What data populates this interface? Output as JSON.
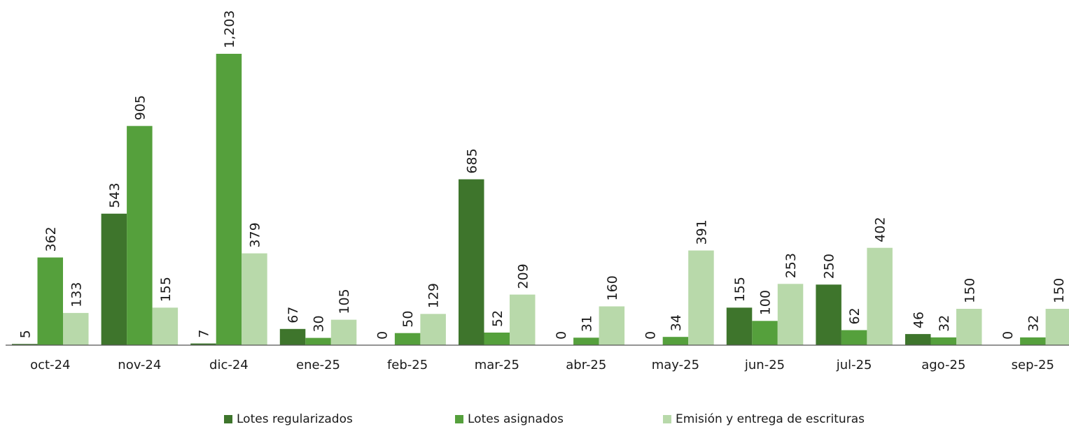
{
  "chart_data": {
    "type": "bar",
    "categories": [
      "oct-24",
      "nov-24",
      "dic-24",
      "ene-25",
      "feb-25",
      "mar-25",
      "abr-25",
      "may-25",
      "jun-25",
      "jul-25",
      "ago-25",
      "sep-25"
    ],
    "series": [
      {
        "name": "Lotes regularizados",
        "color": "#3e752c",
        "values": [
          5,
          543,
          7,
          67,
          0,
          685,
          0,
          0,
          155,
          250,
          46,
          0
        ]
      },
      {
        "name": "Lotes asignados",
        "color": "#55a03c",
        "values": [
          362,
          905,
          1203,
          30,
          50,
          52,
          31,
          34,
          100,
          62,
          32,
          32
        ]
      },
      {
        "name": "Emisión y entrega de escrituras",
        "color": "#b8d9aa",
        "values": [
          133,
          155,
          379,
          105,
          129,
          209,
          160,
          391,
          253,
          402,
          150,
          150
        ]
      }
    ],
    "data_labels": [
      [
        "5",
        "543",
        "7",
        "67",
        "0",
        "685",
        "0",
        "0",
        "155",
        "250",
        "46",
        "0"
      ],
      [
        "362",
        "905",
        "1,203",
        "30",
        "50",
        "52",
        "31",
        "34",
        "100",
        "62",
        "32",
        "32"
      ],
      [
        "133",
        "155",
        "379",
        "105",
        "129",
        "209",
        "160",
        "391",
        "253",
        "402",
        "150",
        "150"
      ]
    ],
    "ylim": [
      0,
      1203
    ],
    "grid": false,
    "legend_position": "bottom"
  }
}
